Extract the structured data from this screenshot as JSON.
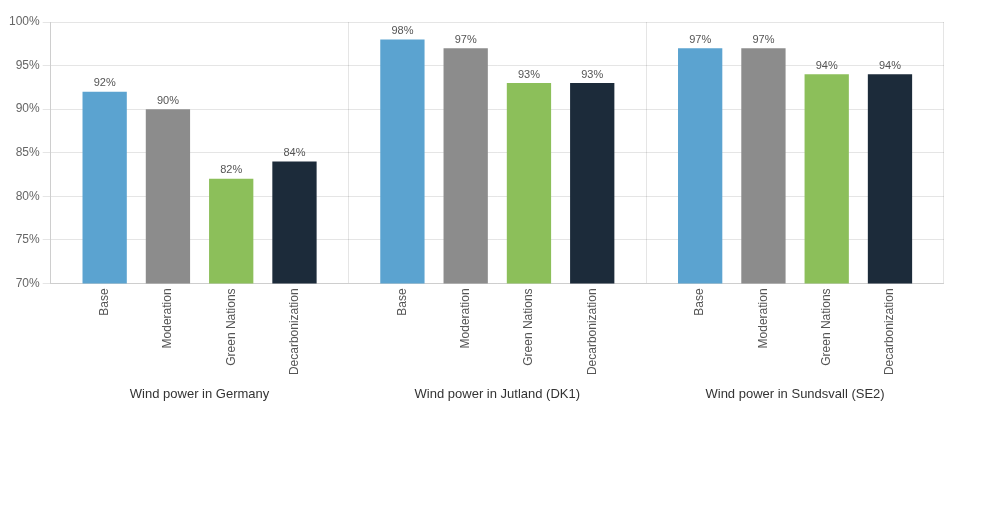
{
  "chart_data": {
    "type": "bar",
    "categories": [
      "Wind power in Germany",
      "Wind power in Jutland (DK1)",
      "Wind power in Sundsvall (SE2)"
    ],
    "series": [
      {
        "name": "Base",
        "color": "#5BA3D0",
        "values": [
          92,
          98,
          97
        ],
        "value_labels": [
          "92%",
          "98%",
          "97%"
        ]
      },
      {
        "name": "Moderation",
        "color": "#8C8C8C",
        "values": [
          90,
          97,
          97
        ],
        "value_labels": [
          "90%",
          "97%",
          "97%"
        ]
      },
      {
        "name": "Green Nations",
        "color": "#8CBF5A",
        "values": [
          82,
          93,
          94
        ],
        "value_labels": [
          "82%",
          "93%",
          "94%"
        ]
      },
      {
        "name": "Decarbonization",
        "color": "#1C2B3A",
        "values": [
          84,
          93,
          94
        ],
        "value_labels": [
          "84%",
          "93%",
          "94%"
        ]
      }
    ],
    "ylim": [
      70,
      100
    ],
    "yticks": [
      {
        "value": 70,
        "label": "70%"
      },
      {
        "value": 75,
        "label": "75%"
      },
      {
        "value": 80,
        "label": "80%"
      },
      {
        "value": 85,
        "label": "85%"
      },
      {
        "value": 90,
        "label": "90%"
      },
      {
        "value": 95,
        "label": "95%"
      },
      {
        "value": 100,
        "label": "100%"
      }
    ],
    "grid": true,
    "data_labels": true
  }
}
